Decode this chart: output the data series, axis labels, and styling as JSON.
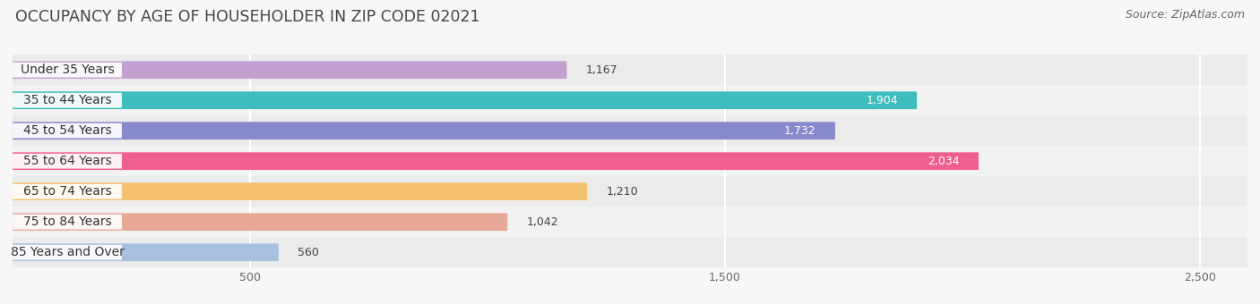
{
  "title": "OCCUPANCY BY AGE OF HOUSEHOLDER IN ZIP CODE 02021",
  "source": "Source: ZipAtlas.com",
  "categories": [
    "Under 35 Years",
    "35 to 44 Years",
    "45 to 54 Years",
    "55 to 64 Years",
    "65 to 74 Years",
    "75 to 84 Years",
    "85 Years and Over"
  ],
  "values": [
    1167,
    1904,
    1732,
    2034,
    1210,
    1042,
    560
  ],
  "bar_colors": [
    "#c4a0d0",
    "#3dbdbd",
    "#8888cc",
    "#ef5f8e",
    "#f5c070",
    "#e8a898",
    "#a8c0e0"
  ],
  "xlim": [
    0,
    2600
  ],
  "xticks": [
    500,
    1500,
    2500
  ],
  "bar_height": 0.58,
  "background_color": "#f7f7f7",
  "title_fontsize": 12.5,
  "source_fontsize": 9,
  "label_fontsize": 9,
  "tick_fontsize": 9,
  "category_fontsize": 10
}
